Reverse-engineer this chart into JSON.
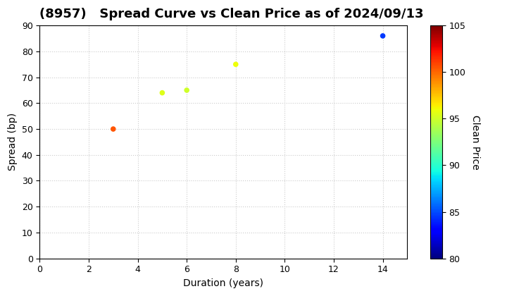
{
  "title": "(8957)   Spread Curve vs Clean Price as of 2024/09/13",
  "xlabel": "Duration (years)",
  "ylabel": "Spread (bp)",
  "colorbar_label": "Clean Price",
  "points": [
    {
      "duration": 3.0,
      "spread": 50,
      "clean_price": 100.5
    },
    {
      "duration": 5.0,
      "spread": 64,
      "clean_price": 95.5
    },
    {
      "duration": 6.0,
      "spread": 65,
      "clean_price": 95.0
    },
    {
      "duration": 8.0,
      "spread": 75,
      "clean_price": 96.0
    },
    {
      "duration": 14.0,
      "spread": 86,
      "clean_price": 84.5
    }
  ],
  "xlim": [
    0,
    15
  ],
  "ylim": [
    0,
    90
  ],
  "xticks": [
    0,
    2,
    4,
    6,
    8,
    10,
    12,
    14
  ],
  "yticks": [
    0,
    10,
    20,
    30,
    40,
    50,
    60,
    70,
    80,
    90
  ],
  "cmap": "jet",
  "clim": [
    80,
    105
  ],
  "colorbar_ticks": [
    80,
    85,
    90,
    95,
    100,
    105
  ],
  "marker_size": 30,
  "background_color": "#ffffff",
  "grid_color": "#cccccc",
  "title_fontsize": 13,
  "title_fontweight": "bold"
}
